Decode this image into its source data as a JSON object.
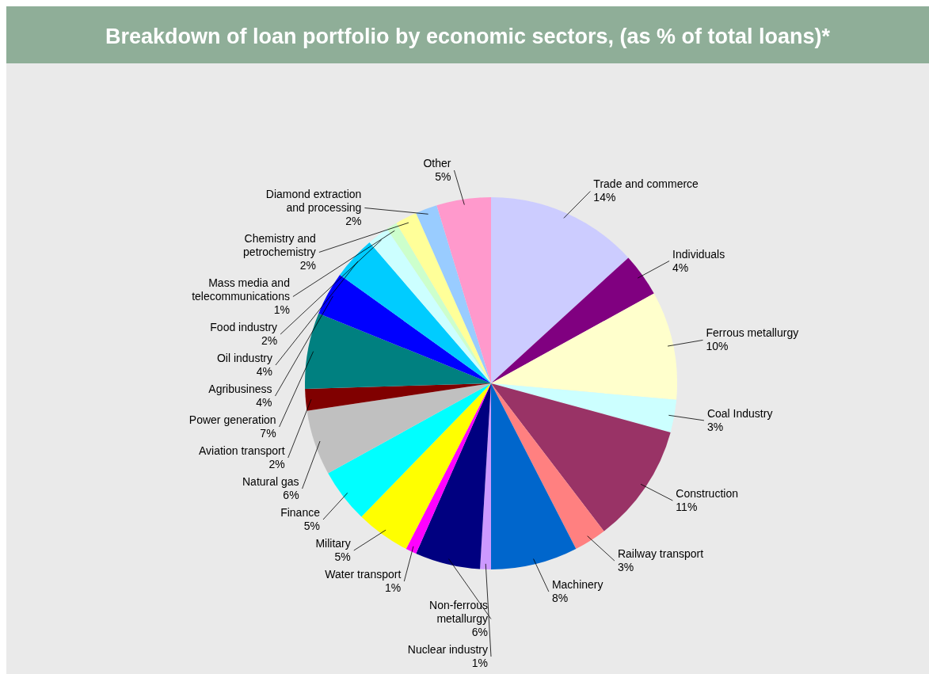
{
  "chart_data": {
    "type": "pie",
    "title": "Breakdown of loan portfolio by economic sectors, (as % of total loans)*",
    "categories": [
      "Trade and commerce",
      "Individuals",
      "Ferrous metallurgy",
      "Coal Industry",
      "Construction",
      "Railway transport",
      "Machinery",
      "Nuclear industry",
      "Non-ferrous metallurgy",
      "Water transport",
      "Military",
      "Finance",
      "Natural gas",
      "Aviation transport",
      "Power generation",
      "Agribusiness",
      "Oil industry",
      "Food industry",
      "Mass media and telecommunications",
      "Chemistry and petrochemistry",
      "Diamond extraction and processing",
      "Other"
    ],
    "values": [
      14,
      4,
      10,
      3,
      11,
      3,
      8,
      1,
      6,
      1,
      5,
      5,
      6,
      2,
      7,
      4,
      4,
      2,
      1,
      2,
      2,
      5
    ],
    "value_labels": [
      "14%",
      "4%",
      "10%",
      "3%",
      "11%",
      "3%",
      "8%",
      "1%",
      "6%",
      "1%",
      "5%",
      "5%",
      "6%",
      "2%",
      "7%",
      "4%",
      "4%",
      "2%",
      "1%",
      "2%",
      "2%",
      "5%"
    ],
    "colors": [
      "#ccccff",
      "#800080",
      "#ffffcc",
      "#ccffff",
      "#993366",
      "#ff8080",
      "#0066cc",
      "#cc99ff",
      "#000080",
      "#ff00ff",
      "#ffff00",
      "#00ffff",
      "#c0c0c0",
      "#800000",
      "#008080",
      "#0000ff",
      "#00ccff",
      "#ccffff",
      "#ccffcc",
      "#ffff99",
      "#99ccff",
      "#ff99cc"
    ]
  }
}
